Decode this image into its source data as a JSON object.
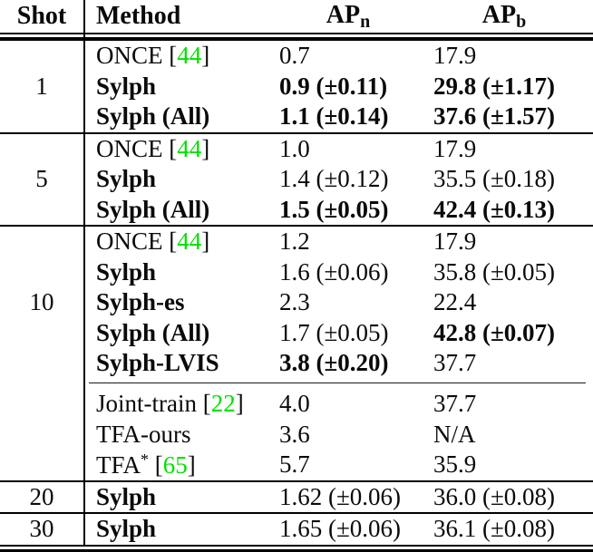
{
  "colors": {
    "citation_green": "#00e100",
    "text": "#0a0a0a",
    "rule": "#000000",
    "background": "#ffffff"
  },
  "format": {
    "cite_open": " [",
    "cite_close": "]"
  },
  "header": {
    "shot": "Shot",
    "method": "Method",
    "ap_n_base": "AP",
    "ap_n_sub": "n",
    "ap_b_base": "AP",
    "ap_b_sub": "b"
  },
  "groups": [
    {
      "shot": "1",
      "rule_before": "none",
      "rows": [
        {
          "method": "ONCE",
          "cite": "44",
          "bold_method": false,
          "ap_n": "0.7",
          "bold_n": false,
          "ap_b": "17.9",
          "bold_b": false
        },
        {
          "method": "Sylph",
          "bold_method": true,
          "ap_n": "0.9 (±0.11)",
          "bold_n": true,
          "ap_b": "29.8 (±1.17)",
          "bold_b": true
        },
        {
          "method": "Sylph (All)",
          "bold_method": true,
          "ap_n": "1.1 (±0.14)",
          "bold_n": true,
          "ap_b": "37.6 (±1.57)",
          "bold_b": true
        }
      ]
    },
    {
      "shot": "5",
      "rule_before": "full",
      "rows": [
        {
          "method": "ONCE",
          "cite": "44",
          "bold_method": false,
          "ap_n": "1.0",
          "bold_n": false,
          "ap_b": "17.9",
          "bold_b": false
        },
        {
          "method": "Sylph",
          "bold_method": true,
          "ap_n": "1.4 (±0.12)",
          "bold_n": false,
          "ap_b": "35.5 (±0.18)",
          "bold_b": false
        },
        {
          "method": "Sylph (All)",
          "bold_method": true,
          "ap_n": "1.5 (±0.05)",
          "bold_n": true,
          "ap_b": "42.4 (±0.13)",
          "bold_b": true
        }
      ]
    },
    {
      "shot": "10",
      "rule_before": "full",
      "rows": [
        {
          "method": "ONCE",
          "cite": "44",
          "bold_method": false,
          "ap_n": "1.2",
          "bold_n": false,
          "ap_b": "17.9",
          "bold_b": false
        },
        {
          "method": "Sylph",
          "bold_method": true,
          "ap_n": "1.6 (±0.06)",
          "bold_n": false,
          "ap_b": "35.8 (±0.05)",
          "bold_b": false
        },
        {
          "method": "Sylph-es",
          "bold_method": true,
          "ap_n": "2.3",
          "bold_n": false,
          "ap_b": "22.4",
          "bold_b": false
        },
        {
          "method": "Sylph (All)",
          "bold_method": true,
          "ap_n": "1.7 (±0.05)",
          "bold_n": false,
          "ap_b": "42.8 (±0.07)",
          "bold_b": true
        },
        {
          "method": "Sylph-LVIS",
          "bold_method": true,
          "ap_n": "3.8 (±0.20)",
          "bold_n": true,
          "ap_b": "37.7",
          "bold_b": false
        }
      ]
    },
    {
      "shot": "",
      "rule_before": "partial",
      "rows": [
        {
          "method": "Joint-train",
          "cite": "22",
          "bold_method": false,
          "ap_n": "4.0",
          "bold_n": false,
          "ap_b": "37.7",
          "bold_b": false
        },
        {
          "method": "TFA-ours",
          "bold_method": false,
          "ap_n": "3.6",
          "bold_n": false,
          "ap_b": "N/A",
          "bold_b": false
        },
        {
          "method": "TFA",
          "sup": "*",
          "cite": "65",
          "bold_method": false,
          "ap_n": "5.7",
          "bold_n": false,
          "ap_b": "35.9",
          "bold_b": false
        }
      ]
    },
    {
      "shot": "20",
      "rule_before": "full",
      "rows": [
        {
          "method": "Sylph",
          "bold_method": true,
          "ap_n": "1.62 (±0.06)",
          "bold_n": false,
          "ap_b": "36.0 (±0.08)",
          "bold_b": false
        }
      ]
    },
    {
      "shot": "30",
      "rule_before": "full",
      "rows": [
        {
          "method": "Sylph",
          "bold_method": true,
          "ap_n": "1.65 (±0.06)",
          "bold_n": false,
          "ap_b": "36.1 (±0.08)",
          "bold_b": false
        }
      ]
    }
  ]
}
